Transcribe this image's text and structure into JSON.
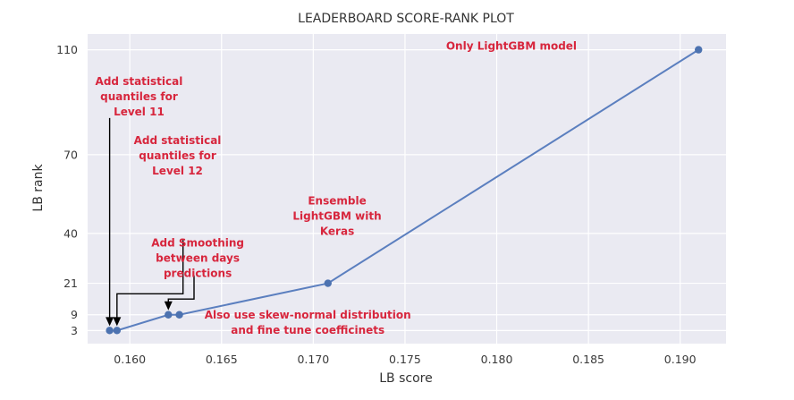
{
  "chart_data": {
    "type": "line",
    "title": "LEADERBOARD SCORE-RANK PLOT",
    "xlabel": "LB score",
    "ylabel": "LB rank",
    "xlim": [
      0.1577,
      0.1925
    ],
    "ylim": [
      -2,
      116
    ],
    "xticks": [
      0.16,
      0.165,
      0.17,
      0.175,
      0.18,
      0.185,
      0.19
    ],
    "xtick_labels": [
      "0.160",
      "0.165",
      "0.170",
      "0.175",
      "0.180",
      "0.185",
      "0.190"
    ],
    "yticks": [
      3,
      9,
      21,
      40,
      70,
      110
    ],
    "ytick_labels": [
      "3",
      "9",
      "21",
      "40",
      "70",
      "110"
    ],
    "grid": true,
    "background": "#eaeaf2",
    "line_color": "#5b7fbf",
    "marker_color": "#4c72b0",
    "annotation_color": "#d7263d",
    "series": [
      {
        "x": [
          0.1589,
          0.1593,
          0.1621,
          0.1627,
          0.1708,
          0.191
        ],
        "y": [
          3,
          3,
          9,
          9,
          21,
          110
        ]
      }
    ],
    "annotations": [
      {
        "lines": [
          "Only LightGBM model"
        ],
        "at": [
          0.1808,
          110
        ],
        "anchor": "middle",
        "arrow": null
      },
      {
        "lines": [
          "Add statistical",
          "quantiles for",
          "Level 11"
        ],
        "at": [
          0.1605,
          96.5
        ],
        "anchor": "middle",
        "arrow": [
          [
            0.1589,
            84
          ],
          [
            0.1589,
            3
          ]
        ]
      },
      {
        "lines": [
          "Add statistical",
          "quantiles for",
          "Level 12"
        ],
        "at": [
          0.1626,
          74
        ],
        "anchor": "middle",
        "arrow": [
          [
            0.1629,
            37.5
          ],
          [
            0.1629,
            17
          ],
          [
            0.1593,
            17
          ],
          [
            0.1593,
            3
          ]
        ]
      },
      {
        "lines": [
          "Add Smoothing",
          "between days",
          "predictions"
        ],
        "at": [
          0.1637,
          35
        ],
        "anchor": "middle",
        "arrow": [
          [
            0.1635,
            24
          ],
          [
            0.1635,
            15
          ],
          [
            0.1621,
            15
          ],
          [
            0.1621,
            9
          ]
        ]
      },
      {
        "lines": [
          "Ensemble",
          "LightGBM with",
          "Keras"
        ],
        "at": [
          0.1713,
          51
        ],
        "anchor": "middle",
        "arrow": null
      },
      {
        "lines": [
          "Also use skew-normal distribution",
          "and fine tune coefficinets"
        ],
        "at": [
          0.1697,
          7.5
        ],
        "anchor": "middle",
        "arrow": null
      }
    ]
  }
}
